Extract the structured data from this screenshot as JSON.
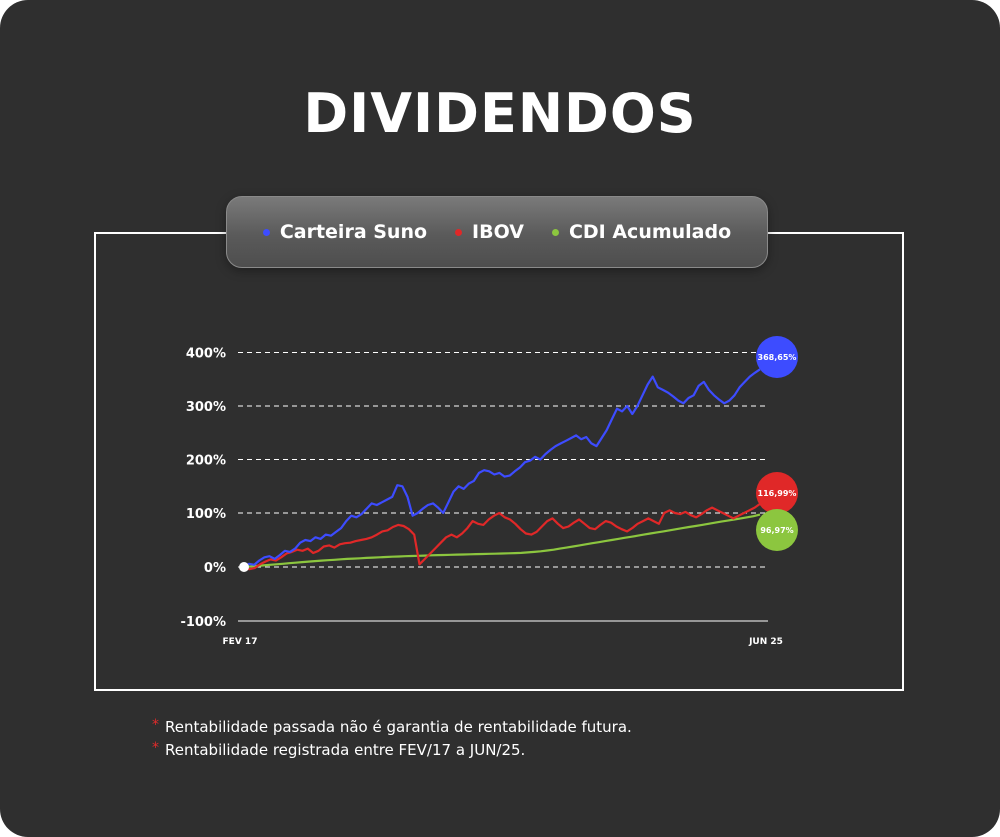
{
  "title": "DIVIDENDOS",
  "legend": [
    {
      "label": "Carteira Suno",
      "color": "#3d4cff"
    },
    {
      "label": "IBOV",
      "color": "#e02828"
    },
    {
      "label": "CDI Acumulado",
      "color": "#8cc63f"
    }
  ],
  "notes": [
    "Rentabilidade passada não é garantia de rentabilidade futura.",
    "Rentabilidade registrada entre FEV/17 a JUN/25."
  ],
  "chart_data": {
    "type": "line",
    "x_start_label": "FEV 17",
    "x_end_label": "JUN 25",
    "yticks": [
      {
        "value": 400,
        "label": "400%"
      },
      {
        "value": 300,
        "label": "300%"
      },
      {
        "value": 200,
        "label": "200%"
      },
      {
        "value": 100,
        "label": "100%"
      },
      {
        "value": 0,
        "label": "0%"
      },
      {
        "value": -100,
        "label": "-100%"
      }
    ],
    "ylim": [
      -100,
      400
    ],
    "grid": true,
    "series": [
      {
        "name": "Carteira Suno",
        "color": "#3d4cff",
        "final_label": "368,65%",
        "values": [
          0,
          6,
          4,
          12,
          18,
          20,
          15,
          22,
          30,
          28,
          34,
          45,
          50,
          48,
          55,
          52,
          60,
          58,
          65,
          72,
          85,
          95,
          92,
          98,
          108,
          118,
          115,
          120,
          125,
          130,
          152,
          150,
          130,
          95,
          100,
          108,
          115,
          118,
          110,
          100,
          120,
          140,
          150,
          145,
          155,
          160,
          175,
          180,
          178,
          172,
          175,
          168,
          170,
          178,
          185,
          195,
          198,
          205,
          200,
          210,
          218,
          225,
          230,
          235,
          240,
          245,
          238,
          242,
          230,
          225,
          240,
          255,
          275,
          295,
          290,
          300,
          285,
          300,
          320,
          340,
          355,
          335,
          330,
          325,
          318,
          310,
          305,
          315,
          320,
          338,
          345,
          330,
          320,
          312,
          305,
          310,
          320,
          335,
          345,
          355,
          362,
          368.65
        ]
      },
      {
        "name": "IBOV",
        "color": "#e02828",
        "final_label": "116,99%",
        "values": [
          0,
          -4,
          -2,
          5,
          10,
          14,
          12,
          18,
          25,
          28,
          32,
          30,
          34,
          26,
          30,
          38,
          40,
          36,
          42,
          44,
          45,
          48,
          50,
          52,
          55,
          60,
          66,
          68,
          74,
          78,
          76,
          70,
          60,
          5,
          15,
          25,
          35,
          45,
          55,
          60,
          55,
          62,
          72,
          85,
          80,
          78,
          88,
          95,
          100,
          92,
          88,
          80,
          70,
          62,
          60,
          65,
          75,
          85,
          90,
          80,
          72,
          75,
          82,
          88,
          80,
          72,
          70,
          78,
          85,
          82,
          75,
          70,
          66,
          72,
          80,
          85,
          90,
          85,
          80,
          100,
          105,
          100,
          98,
          102,
          96,
          92,
          98,
          105,
          110,
          105,
          100,
          95,
          90,
          95,
          100,
          105,
          110,
          116.99
        ]
      },
      {
        "name": "CDI Acumulado",
        "color": "#8cc63f",
        "final_label": "96,97%",
        "values": [
          0,
          1,
          2,
          3,
          4,
          5,
          6,
          7,
          8,
          9,
          10,
          11,
          11.8,
          12.6,
          13.4,
          14.2,
          15,
          15.6,
          16.2,
          16.8,
          17.4,
          18,
          18.5,
          19,
          19.5,
          20,
          20.4,
          20.8,
          21.2,
          21.6,
          22,
          22.3,
          22.6,
          22.9,
          23.2,
          23.5,
          23.8,
          24.1,
          24.4,
          24.7,
          25,
          25.4,
          25.8,
          26.2,
          27,
          28,
          29,
          30.5,
          32,
          34,
          36,
          38,
          40,
          42,
          44,
          46,
          48,
          50,
          52,
          54,
          56,
          58,
          60,
          62,
          64,
          66,
          68,
          70,
          72,
          74,
          76,
          78,
          80,
          82,
          84,
          86,
          88,
          90,
          92,
          94,
          96.97
        ]
      }
    ]
  }
}
